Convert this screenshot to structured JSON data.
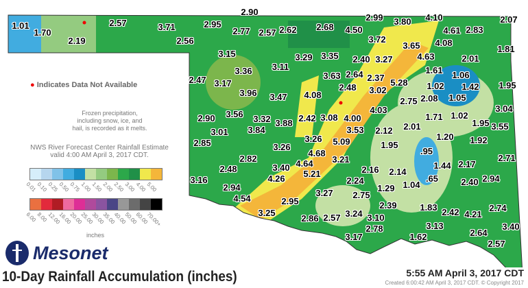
{
  "title": "10-Day Rainfall Accumulation (inches)",
  "timestamp": "5:55 AM April 3, 2017 CDT",
  "created": "Created 6:00:42 AM April 3, 2017 CDT. © Copyright 2017",
  "logo": "Mesonet",
  "not_available_note": "Indicates Data Not Available",
  "frozen_note": [
    "Frozen precipitation,",
    "including snow, ice, and",
    "hail, is recorded as it melts."
  ],
  "source_note": [
    "NWS River Forecast Center Rainfall Estimate",
    "valid 4:00 AM April 3, 2017 CDT."
  ],
  "legend": {
    "unit": "inches",
    "row1": {
      "labels": [
        "0.01",
        "0.10",
        "0.25",
        "0.50",
        "0.75",
        "1.00",
        "1.50",
        "2.00",
        "2.50",
        "3.00",
        "4.00",
        "5.00"
      ],
      "colors": [
        "#d6eefa",
        "#b6d6ee",
        "#80c2e8",
        "#41ace0",
        "#1a8ec4",
        "#c3e0a4",
        "#94cb80",
        "#7cb64c",
        "#2ca84a",
        "#209048",
        "#f0e84c",
        "#f4b63a"
      ]
    },
    "row2": {
      "labels": [
        "6.00",
        "8.00",
        "12.00",
        "16.00",
        "20.00",
        "25.00",
        "30.00",
        "35.00",
        "40.00",
        "50.00",
        "60.00",
        "70.00+"
      ],
      "colors": [
        "#ea7040",
        "#e22a3c",
        "#b01c24",
        "#ee6aa0",
        "#de2e96",
        "#b04a9c",
        "#8a54a0",
        "#4a4686",
        "#989898",
        "#6c6c6c",
        "#444444",
        "#000000"
      ]
    }
  },
  "stations": [
    "1.01",
    "1.70",
    "2.19",
    "2.57",
    "3.71",
    "2.56",
    "2.90",
    "2.95",
    "2.77",
    "2.57",
    "2.62",
    "2.68",
    "4.50",
    "2.99",
    "3.80",
    "4.10",
    "4.61",
    "2.83",
    "2.07",
    "3.72",
    "3.65",
    "4.08",
    "1.81",
    "4.63",
    "2.01",
    "3.29",
    "3.35",
    "3.15",
    "3.11",
    "3.36",
    "2.40",
    "3.27",
    "1.61",
    "1.06",
    "2.47",
    "3.17",
    "3.63",
    "2.64",
    "2.37",
    "1.42",
    "1.95",
    "5.28",
    "2.48",
    "1.02",
    "3.96",
    "3.47",
    "4.08",
    "3.02",
    "2.75",
    "2.08",
    "1.05",
    "2.90",
    "3.56",
    "3.32",
    "3.88",
    "2.42",
    "3.08",
    "4.00",
    "4.03",
    "3.04",
    "1.71",
    "1.02",
    "3.01",
    "3.84",
    "3.53",
    "2.12",
    "2.01",
    "1.95",
    "3.55",
    "1.20",
    "1.92",
    "2.85",
    "3.26",
    "5.09",
    "3.26",
    "1.95",
    "2.82",
    "4.68",
    "3.21",
    ".95",
    "2.71",
    "2.48",
    "3.40",
    "4.64",
    "5.21",
    "2.16",
    "2.24",
    "2.14",
    "1.44",
    "2.17",
    "3.16",
    "4.26",
    "2.40",
    "2.94",
    "2.94",
    "3.27",
    "2.75",
    "1.29",
    "1.04",
    ".65",
    "4.54",
    "2.95",
    "2.39",
    "1.83",
    "2.42",
    "4.21",
    "2.74",
    "3.25",
    "2.86",
    "2.57",
    "3.24",
    "3.10",
    "3.13",
    "2.78",
    "3.40",
    "3.17",
    "1.62",
    "2.64",
    "2.57"
  ]
}
